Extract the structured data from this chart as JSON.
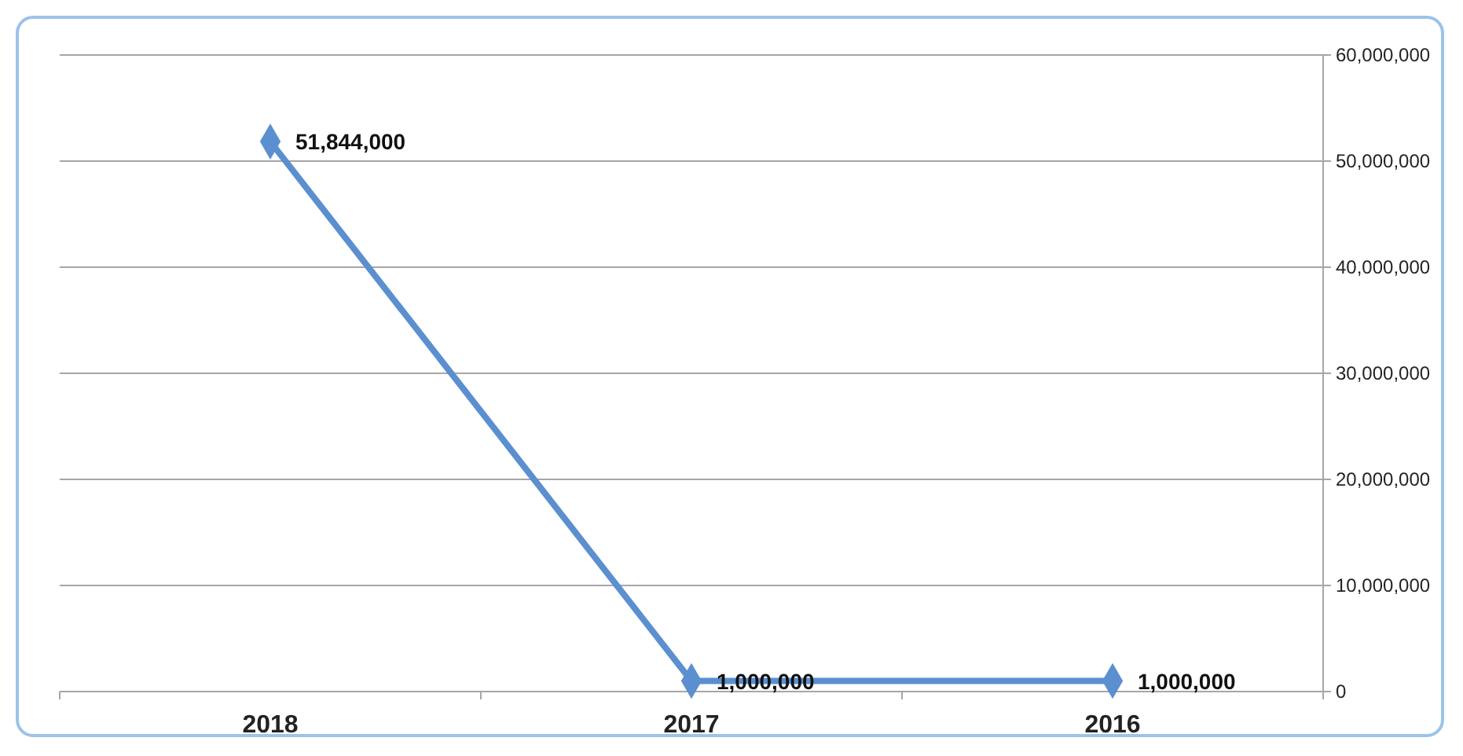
{
  "chart_data": {
    "type": "line",
    "categories": [
      "2018",
      "2017",
      "2016"
    ],
    "series": [
      {
        "color": "#5b8fd0",
        "values": [
          51844000,
          1000000,
          1000000
        ],
        "value_labels": [
          "51,844,000",
          "1,000,000",
          "1,000,000"
        ]
      }
    ],
    "ylim": [
      0,
      60000000
    ],
    "yticks": [
      {
        "value": 0,
        "label": "0"
      },
      {
        "value": 10000000,
        "label": "10,000,000"
      },
      {
        "value": 20000000,
        "label": "20,000,000"
      },
      {
        "value": 30000000,
        "label": "30,000,000"
      },
      {
        "value": 40000000,
        "label": "40,000,000"
      },
      {
        "value": 50000000,
        "label": "50,000,000"
      },
      {
        "value": 60000000,
        "label": "60,000,000"
      }
    ],
    "grid": "y",
    "marker": "diamond"
  }
}
